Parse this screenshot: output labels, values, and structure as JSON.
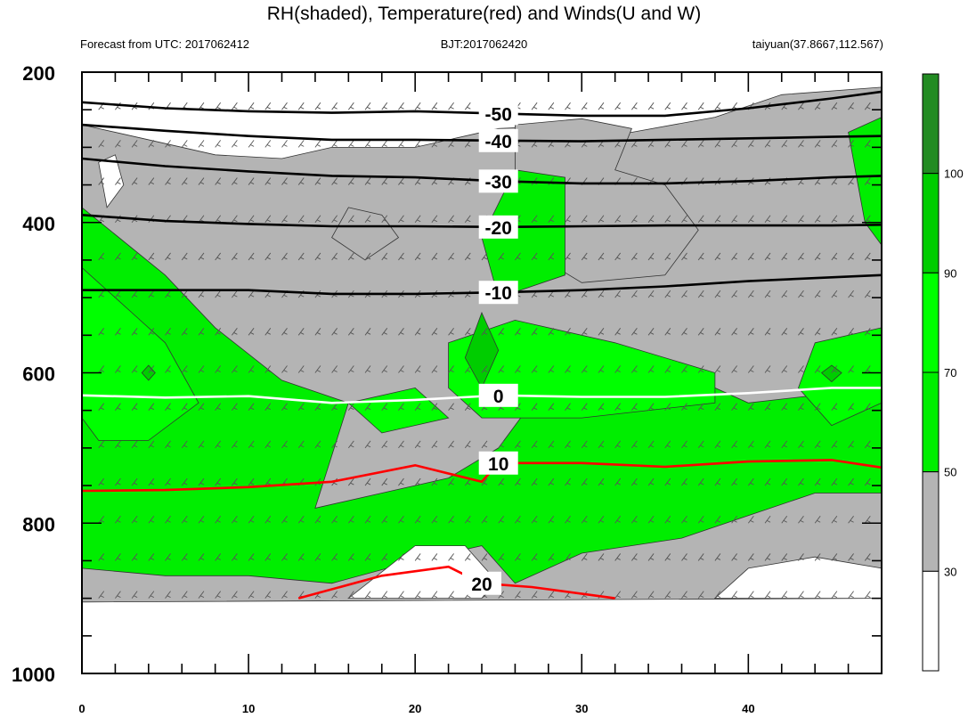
{
  "chart_data": {
    "type": "heatmap",
    "title": "RH(shaded), Temperature(red) and Winds(U and W)",
    "subtitle_left": "Forecast from UTC: 2017062412",
    "subtitle_center": "BJT:2017062420",
    "subtitle_right": "taiyuan(37.8667,112.567)",
    "xlabel": "",
    "ylabel": "",
    "xlim": [
      0,
      48
    ],
    "ylim": [
      1000,
      200
    ],
    "x_ticks": [
      0,
      10,
      20,
      30,
      40
    ],
    "y_ticks": [
      200,
      400,
      600,
      800,
      1000
    ],
    "colorbar": {
      "levels": [
        30,
        50,
        70,
        90,
        100
      ],
      "colors": [
        "#ffffff",
        "#b4b4b4",
        "#00ee00",
        "#00ff00",
        "#00cd00",
        "#228b22"
      ]
    },
    "temperature_contours": [
      {
        "label": "-50",
        "color": "#000000",
        "points": [
          [
            0,
            240
          ],
          [
            5,
            248
          ],
          [
            10,
            252
          ],
          [
            15,
            254
          ],
          [
            20,
            252
          ],
          [
            25,
            255
          ],
          [
            30,
            258
          ],
          [
            35,
            258
          ],
          [
            40,
            248
          ],
          [
            45,
            235
          ],
          [
            48,
            226
          ]
        ]
      },
      {
        "label": "-40",
        "color": "#000000",
        "points": [
          [
            0,
            270
          ],
          [
            5,
            278
          ],
          [
            10,
            285
          ],
          [
            15,
            290
          ],
          [
            20,
            290
          ],
          [
            25,
            291
          ],
          [
            30,
            292
          ],
          [
            35,
            290
          ],
          [
            40,
            288
          ],
          [
            45,
            286
          ],
          [
            48,
            285
          ]
        ]
      },
      {
        "label": "-30",
        "color": "#000000",
        "points": [
          [
            0,
            315
          ],
          [
            5,
            325
          ],
          [
            10,
            332
          ],
          [
            15,
            338
          ],
          [
            20,
            340
          ],
          [
            25,
            345
          ],
          [
            30,
            348
          ],
          [
            35,
            348
          ],
          [
            40,
            345
          ],
          [
            45,
            340
          ],
          [
            48,
            338
          ]
        ]
      },
      {
        "label": "-20",
        "color": "#000000",
        "points": [
          [
            0,
            390
          ],
          [
            5,
            398
          ],
          [
            10,
            402
          ],
          [
            15,
            405
          ],
          [
            20,
            405
          ],
          [
            25,
            406
          ],
          [
            30,
            405
          ],
          [
            35,
            404
          ],
          [
            40,
            404
          ],
          [
            45,
            404
          ],
          [
            48,
            403
          ]
        ]
      },
      {
        "label": "-10",
        "color": "#000000",
        "points": [
          [
            0,
            490
          ],
          [
            5,
            490
          ],
          [
            10,
            490
          ],
          [
            15,
            495
          ],
          [
            20,
            495
          ],
          [
            25,
            493
          ],
          [
            30,
            490
          ],
          [
            35,
            485
          ],
          [
            40,
            478
          ],
          [
            45,
            473
          ],
          [
            48,
            470
          ]
        ]
      },
      {
        "label": "0",
        "color": "#ffffff",
        "points": [
          [
            0,
            630
          ],
          [
            5,
            633
          ],
          [
            10,
            631
          ],
          [
            15,
            640
          ],
          [
            20,
            636
          ],
          [
            25,
            630
          ],
          [
            30,
            632
          ],
          [
            35,
            632
          ],
          [
            40,
            627
          ],
          [
            45,
            620
          ],
          [
            48,
            620
          ]
        ]
      },
      {
        "label": "10",
        "color": "#ff0000",
        "points": [
          [
            0,
            757
          ],
          [
            5,
            756
          ],
          [
            10,
            752
          ],
          [
            15,
            745
          ],
          [
            20,
            723
          ],
          [
            24,
            745
          ],
          [
            25,
            720
          ],
          [
            30,
            720
          ],
          [
            35,
            725
          ],
          [
            40,
            718
          ],
          [
            45,
            716
          ],
          [
            48,
            726
          ]
        ]
      },
      {
        "label": "20",
        "color": "#ff0000",
        "points": [
          [
            13,
            900
          ],
          [
            18,
            870
          ],
          [
            22,
            858
          ],
          [
            24,
            880
          ],
          [
            27,
            885
          ],
          [
            32,
            900
          ]
        ]
      }
    ]
  }
}
